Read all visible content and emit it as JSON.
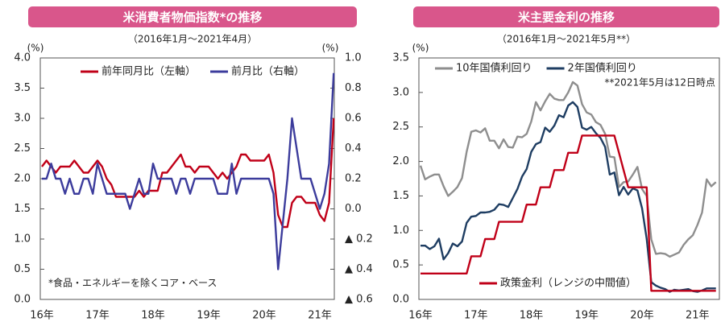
{
  "chart_data": [
    {
      "type": "line",
      "title": "米消費者物価指数*の推移",
      "subtitle": "（2016年1月～2021年4月）",
      "y_unit": "(%)",
      "y2_unit": "(%)",
      "annotation": "*食品・エネルギーを除くコア・ベース",
      "legend": "upper left",
      "categories": [
        "16年",
        null,
        null,
        null,
        null,
        null,
        null,
        null,
        null,
        null,
        null,
        null,
        "17年",
        null,
        null,
        null,
        null,
        null,
        null,
        null,
        null,
        null,
        null,
        null,
        "18年",
        null,
        null,
        null,
        null,
        null,
        null,
        null,
        null,
        null,
        null,
        null,
        "19年",
        null,
        null,
        null,
        null,
        null,
        null,
        null,
        null,
        null,
        null,
        null,
        "20年",
        null,
        null,
        null,
        null,
        null,
        null,
        null,
        null,
        null,
        null,
        null,
        "21年",
        null,
        null,
        null
      ],
      "series": [
        {
          "name": "前年同月比（左軸）",
          "color": "#c00018",
          "values": [
            2.2,
            2.3,
            2.2,
            2.1,
            2.2,
            2.2,
            2.2,
            2.3,
            2.2,
            2.1,
            2.1,
            2.2,
            2.3,
            2.2,
            2.0,
            1.9,
            1.7,
            1.7,
            1.7,
            1.7,
            1.7,
            1.8,
            1.7,
            1.8,
            1.8,
            1.8,
            2.1,
            2.1,
            2.2,
            2.3,
            2.4,
            2.2,
            2.2,
            2.1,
            2.2,
            2.2,
            2.2,
            2.1,
            2.0,
            2.1,
            2.0,
            2.1,
            2.2,
            2.4,
            2.4,
            2.3,
            2.3,
            2.3,
            2.3,
            2.4,
            2.1,
            1.4,
            1.2,
            1.2,
            1.6,
            1.7,
            1.7,
            1.6,
            1.6,
            1.6,
            1.4,
            1.3,
            1.6,
            3.0
          ]
        },
        {
          "name": "前月比（右軸）",
          "color": "#3c3c9c",
          "axis": "y2",
          "values": [
            0.2,
            0.2,
            0.3,
            0.2,
            0.2,
            0.1,
            0.2,
            0.1,
            0.1,
            0.2,
            0.2,
            0.1,
            0.3,
            0.2,
            0.1,
            0.1,
            0.1,
            0.1,
            0.1,
            0.0,
            0.1,
            0.2,
            0.1,
            0.1,
            0.3,
            0.2,
            0.2,
            0.2,
            0.2,
            0.1,
            0.2,
            0.2,
            0.1,
            0.2,
            0.2,
            0.2,
            0.2,
            0.2,
            0.1,
            0.1,
            0.1,
            0.3,
            0.1,
            0.2,
            0.2,
            0.2,
            0.2,
            0.2,
            0.2,
            0.2,
            0.1,
            -0.4,
            -0.1,
            0.2,
            0.6,
            0.4,
            0.2,
            0.2,
            0.2,
            0.1,
            0.0,
            0.1,
            0.3,
            0.9
          ]
        }
      ],
      "ylim": [
        0,
        4
      ],
      "yticks": [
        {
          "value": 0,
          "label": "0.0"
        },
        0.5,
        {
          "value": 1,
          "label": "1.0"
        },
        1.5,
        {
          "value": 2,
          "label": "2.0"
        },
        2.5,
        {
          "value": 3,
          "label": "3.0"
        },
        3.5,
        {
          "value": 4,
          "label": "4.0"
        }
      ],
      "y2lim": [
        -0.6,
        1.0
      ],
      "y2ticks": [
        {
          "value": -0.6,
          "label": "▲ 0.6"
        },
        {
          "value": -0.4,
          "label": "▲ 0.4"
        },
        {
          "value": -0.2,
          "label": "▲ 0.2"
        },
        {
          "value": 0,
          "label": "0.0"
        },
        0.2,
        0.4,
        0.6,
        0.8,
        {
          "value": 1,
          "label": "1.0"
        }
      ]
    },
    {
      "type": "line",
      "title": "米主要金利の推移",
      "subtitle": "（2016年1月～2021年5月**）",
      "y_unit": "(%)",
      "annotation": "**2021年5月は12日時点",
      "legend": "upper left",
      "categories": [
        "16年",
        null,
        null,
        null,
        null,
        null,
        null,
        null,
        null,
        null,
        null,
        null,
        "17年",
        null,
        null,
        null,
        null,
        null,
        null,
        null,
        null,
        null,
        null,
        null,
        "18年",
        null,
        null,
        null,
        null,
        null,
        null,
        null,
        null,
        null,
        null,
        null,
        "19年",
        null,
        null,
        null,
        null,
        null,
        null,
        null,
        null,
        null,
        null,
        null,
        "20年",
        null,
        null,
        null,
        null,
        null,
        null,
        null,
        null,
        null,
        null,
        null,
        "21年",
        null,
        null,
        null,
        null
      ],
      "series": [
        {
          "name": "10年国債利回り",
          "color": "#8e8e8e",
          "values": [
            1.94,
            1.74,
            1.78,
            1.81,
            1.81,
            1.64,
            1.5,
            1.56,
            1.63,
            1.76,
            2.14,
            2.43,
            2.45,
            2.42,
            2.48,
            2.3,
            2.3,
            2.19,
            2.32,
            2.21,
            2.2,
            2.36,
            2.35,
            2.4,
            2.58,
            2.86,
            2.74,
            2.87,
            2.98,
            2.91,
            2.89,
            2.89,
            3.0,
            3.15,
            3.1,
            2.83,
            2.71,
            2.68,
            2.57,
            2.53,
            2.4,
            2.07,
            2.06,
            1.63,
            1.7,
            1.71,
            1.81,
            1.92,
            1.6,
            1.5,
            0.87,
            0.66,
            0.67,
            0.66,
            0.62,
            0.65,
            0.68,
            0.79,
            0.87,
            0.93,
            1.08,
            1.26,
            1.74,
            1.64,
            1.7
          ]
        },
        {
          "name": "2年国債利回り",
          "color": "#1e3d62",
          "values": [
            0.78,
            0.78,
            0.73,
            0.77,
            0.88,
            0.58,
            0.67,
            0.81,
            0.77,
            0.84,
            1.11,
            1.2,
            1.21,
            1.26,
            1.26,
            1.27,
            1.3,
            1.38,
            1.37,
            1.34,
            1.47,
            1.6,
            1.78,
            1.89,
            2.14,
            2.25,
            2.28,
            2.49,
            2.43,
            2.52,
            2.67,
            2.64,
            2.81,
            2.86,
            2.79,
            2.49,
            2.46,
            2.5,
            2.41,
            2.34,
            2.21,
            1.81,
            1.84,
            1.51,
            1.63,
            1.52,
            1.61,
            1.58,
            1.32,
            0.88,
            0.25,
            0.2,
            0.17,
            0.15,
            0.11,
            0.14,
            0.13,
            0.14,
            0.15,
            0.12,
            0.11,
            0.13,
            0.16,
            0.16,
            0.16
          ]
        },
        {
          "name": "政策金利（レンジの中間値）",
          "color": "#c00018",
          "legend": "lower center",
          "values": [
            0.375,
            0.375,
            0.375,
            0.375,
            0.375,
            0.375,
            0.375,
            0.375,
            0.375,
            0.375,
            0.375,
            0.625,
            0.625,
            0.625,
            0.875,
            0.875,
            0.875,
            1.125,
            1.125,
            1.125,
            1.125,
            1.125,
            1.125,
            1.375,
            1.375,
            1.375,
            1.625,
            1.625,
            1.625,
            1.875,
            1.875,
            1.875,
            2.125,
            2.125,
            2.125,
            2.375,
            2.375,
            2.375,
            2.375,
            2.375,
            2.375,
            2.375,
            2.375,
            2.125,
            1.875,
            1.625,
            1.625,
            1.625,
            1.625,
            1.625,
            0.125,
            0.125,
            0.125,
            0.125,
            0.125,
            0.125,
            0.125,
            0.125,
            0.125,
            0.125,
            0.125,
            0.125,
            0.125,
            0.125,
            0.125
          ]
        }
      ],
      "ylim": [
        0,
        3.5
      ],
      "yticks": [
        {
          "value": 0,
          "label": "0.0"
        },
        0.5,
        {
          "value": 1,
          "label": "1.0"
        },
        1.5,
        {
          "value": 2,
          "label": "2.0"
        },
        2.5,
        {
          "value": 3,
          "label": "3.0"
        },
        3.5
      ]
    }
  ]
}
